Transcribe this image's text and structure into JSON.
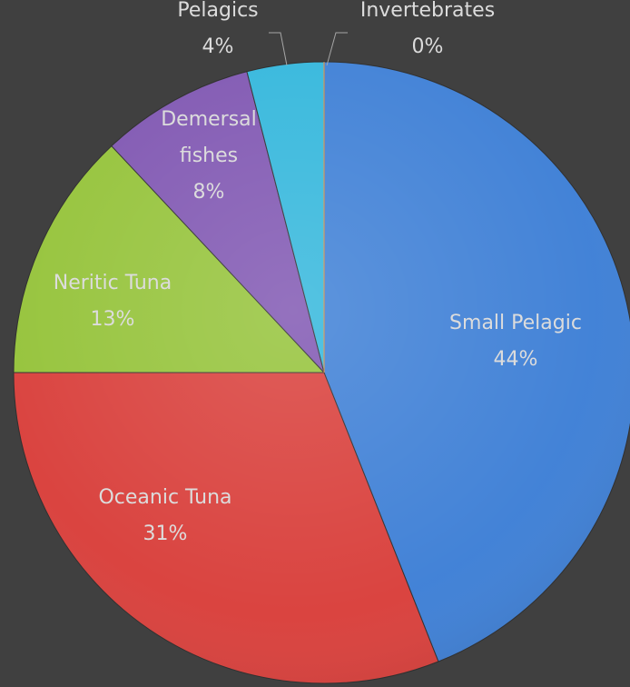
{
  "chart_data": {
    "type": "pie",
    "title": "",
    "slices": [
      {
        "name": "Small Pelagic",
        "label_lines": [
          "Small Pelagic",
          "44%"
        ],
        "value": 44,
        "color": "#3f80d6"
      },
      {
        "name": "Oceanic Tuna",
        "label_lines": [
          "Oceanic Tuna",
          "31%"
        ],
        "value": 31,
        "color": "#d9403c"
      },
      {
        "name": "Neritic Tuna",
        "label_lines": [
          "Neritic Tuna",
          "13%"
        ],
        "value": 13,
        "color": "#95c33a"
      },
      {
        "name": "Demersal fishes",
        "label_lines": [
          "Demersal",
          "fishes",
          "8%"
        ],
        "value": 8,
        "color": "#8057b2"
      },
      {
        "name": "Pelagics",
        "label_lines": [
          "Pelagics",
          "4%"
        ],
        "value": 4,
        "color": "#34b7dc"
      },
      {
        "name": "Invertebrates",
        "label_lines": [
          "Invertebrates",
          "0%"
        ],
        "value": 0,
        "color": "#f08a2c"
      }
    ],
    "start_angle_deg": 0,
    "direction": "clockwise",
    "label_color": "#dcdcdc",
    "background": "#404040",
    "legend": "none"
  }
}
